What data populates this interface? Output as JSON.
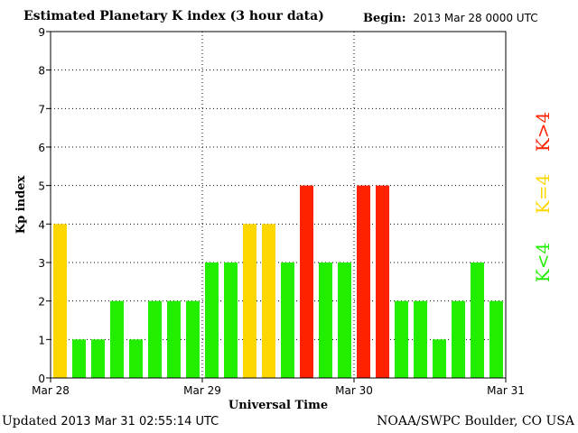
{
  "header": {
    "title": "Estimated Planetary K index (3 hour data)",
    "begin_label": "Begin:",
    "begin_value": "2013 Mar 28 0000 UTC"
  },
  "footer": {
    "updated_label": "Updated",
    "updated_value": "2013 Mar 31 02:55:14 UTC",
    "source": "NOAA/SWPC Boulder, CO USA"
  },
  "legend": {
    "high": "K>4",
    "equal": "K=4",
    "low": "K<4"
  },
  "colors": {
    "low": "#22ee00",
    "equal": "#ffd700",
    "high": "#ff2200"
  },
  "chart_data": {
    "type": "bar",
    "xlabel": "Universal Time",
    "ylabel": "Kp index",
    "ylim": [
      0,
      9
    ],
    "yticks": [
      "0",
      "1",
      "2",
      "3",
      "4",
      "5",
      "6",
      "7",
      "8",
      "9"
    ],
    "xticks": [
      "Mar 28",
      "Mar 29",
      "Mar 30",
      "Mar 31"
    ],
    "grid": true,
    "legend_position": "right",
    "categories": [
      "Mar 28 00-03",
      "Mar 28 03-06",
      "Mar 28 06-09",
      "Mar 28 09-12",
      "Mar 28 12-15",
      "Mar 28 15-18",
      "Mar 28 18-21",
      "Mar 28 21-24",
      "Mar 29 00-03",
      "Mar 29 03-06",
      "Mar 29 06-09",
      "Mar 29 09-12",
      "Mar 29 12-15",
      "Mar 29 15-18",
      "Mar 29 18-21",
      "Mar 29 21-24",
      "Mar 30 00-03",
      "Mar 30 03-06",
      "Mar 30 06-09",
      "Mar 30 09-12",
      "Mar 30 12-15",
      "Mar 30 15-18",
      "Mar 30 18-21",
      "Mar 30 21-24"
    ],
    "values": [
      4,
      1,
      1,
      2,
      1,
      2,
      2,
      2,
      3,
      3,
      4,
      4,
      3,
      5,
      3,
      3,
      5,
      5,
      2,
      2,
      1,
      2,
      3,
      2
    ]
  }
}
